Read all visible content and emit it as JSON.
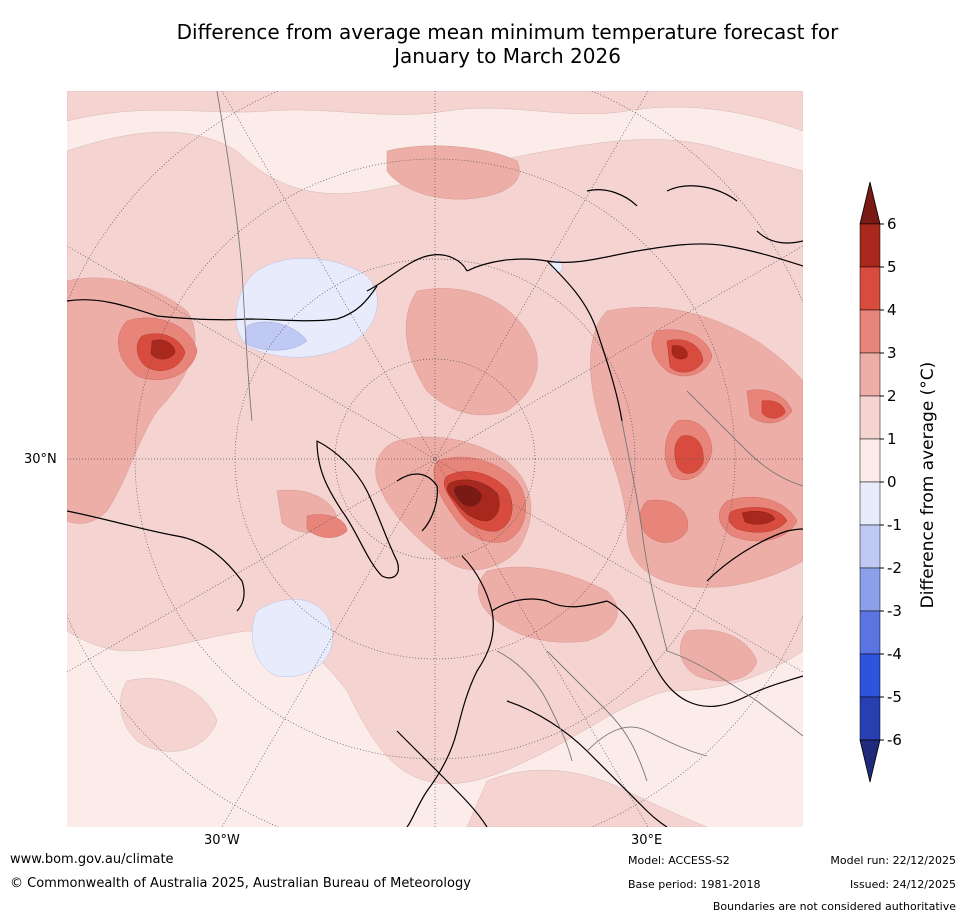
{
  "title_line1": "Difference from average mean minimum temperature forecast for",
  "title_line2": "January to March 2026",
  "axis": {
    "lat_label": "30°N",
    "lon_west": "30°W",
    "lon_east": "30°E"
  },
  "colorbar": {
    "title": "Difference from average (°C)",
    "ticks": [
      "6",
      "5",
      "4",
      "3",
      "2",
      "1",
      "0",
      "-1",
      "-2",
      "-3",
      "-4",
      "-5",
      "-6"
    ],
    "colors": {
      "gt6": "#7a1a14",
      "5to6": "#a8281e",
      "4to5": "#d84c3f",
      "3to4": "#e8857a",
      "2to3": "#eeaea8",
      "1to2": "#f5d3d0",
      "0to1": "#fbece9",
      "m1to0": "#e8ebfb",
      "m2tom1": "#c0c9f3",
      "m3tom2": "#8c9fe9",
      "m4tom3": "#5a75e2",
      "m5tom4": "#2e53dc",
      "m6tom5": "#283fb1",
      "ltm6": "#1f2a7a"
    }
  },
  "footer": {
    "website": "www.bom.gov.au/climate",
    "copyright": "© Commonwealth of Australia 2025, Australian Bureau of Meteorology",
    "model": "Model: ACCESS-S2",
    "base_period": "Base period: 1981-2018",
    "model_run": "Model run: 22/12/2025",
    "issued": "Issued: 24/12/2025",
    "disclaimer": "Boundaries are not considered authoritative"
  }
}
